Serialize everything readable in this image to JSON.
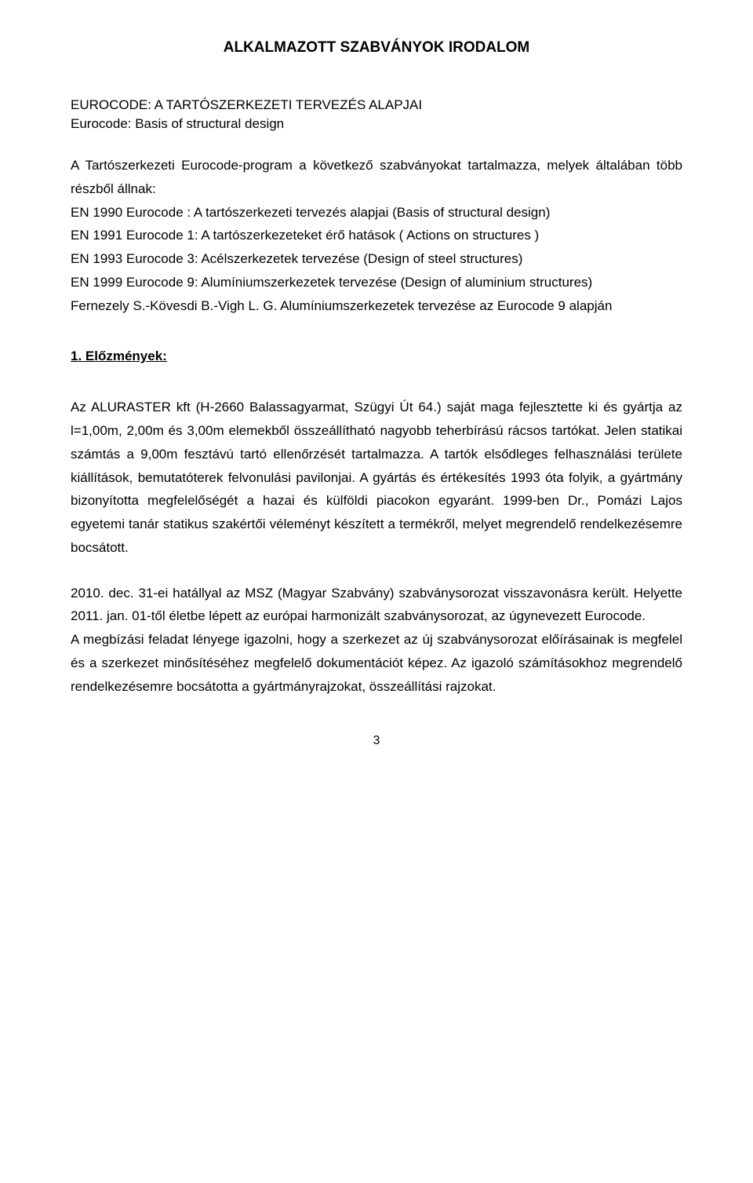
{
  "title": "ALKALMAZOTT SZABVÁNYOK IRODALOM",
  "heading_main": "EUROCODE: A TARTÓSZERKEZETI TERVEZÉS ALAPJAI",
  "heading_sub": "Eurocode: Basis of structural design",
  "para1": "A Tartószerkezeti Eurocode-program a következő szabványokat tartalmazza, melyek általában több részből állnak:",
  "codes": "EN 1990 Eurocode : A tartószerkezeti tervezés alapjai (Basis of structural design)\nEN 1991 Eurocode 1: A tartószerkezeteket érő hatások ( Actions on structures )\nEN 1993 Eurocode 3: Acélszerkezetek tervezése (Design of steel structures)\nEN 1999 Eurocode 9: Alumíniumszerkezetek tervezése (Design of aluminium structures)\nFernezely S.-Kövesdi B.-Vigh L. G. Alumíniumszerkezetek tervezése az Eurocode 9 alapján",
  "section1_label": "1. Előzmények:",
  "para2": "Az ALURASTER kft (H-2660 Balassagyarmat, Szügyi Út 64.) saját maga fejlesztette ki és gyártja az l=1,00m, 2,00m és 3,00m elemekből összeállítható nagyobb  teherbírású rácsos tartókat. Jelen statikai számtás a 9,00m fesztávú tartó ellenőrzését tartalmazza. A tartók elsődleges felhasználási területe kiállítások, bemutatóterek felvonulási pavilonjai. A gyártás és értékesítés 1993 óta folyik, a gyártmány bizonyította megfelelőségét a hazai és külföldi piacokon egyaránt. 1999-ben Dr., Pomázi Lajos egyetemi tanár statikus szakértői véleményt készített a termékről, melyet megrendelő rendelkezésemre bocsátott.",
  "para3": "2010. dec. 31-ei hatállyal az MSZ (Magyar Szabvány) szabványsorozat visszavonásra került. Helyette 2011. jan. 01-től életbe lépett az európai harmonizált szabványsorozat, az úgynevezett Eurocode.",
  "para4": "A megbízási feladat lényege igazolni, hogy a szerkezet az új szabványsorozat előírásainak is megfelel és a szerkezet minősítéséhez megfelelő dokumentációt képez. Az igazoló számításokhoz megrendelő rendelkezésemre bocsátotta a gyártmányrajzokat, összeállítási rajzokat.",
  "page_number": "3",
  "colors": {
    "text": "#000000",
    "background": "#ffffff"
  },
  "typography": {
    "font_family": "Arial",
    "title_size_pt": 14,
    "body_size_pt": 12.5,
    "line_height": 1.75
  }
}
